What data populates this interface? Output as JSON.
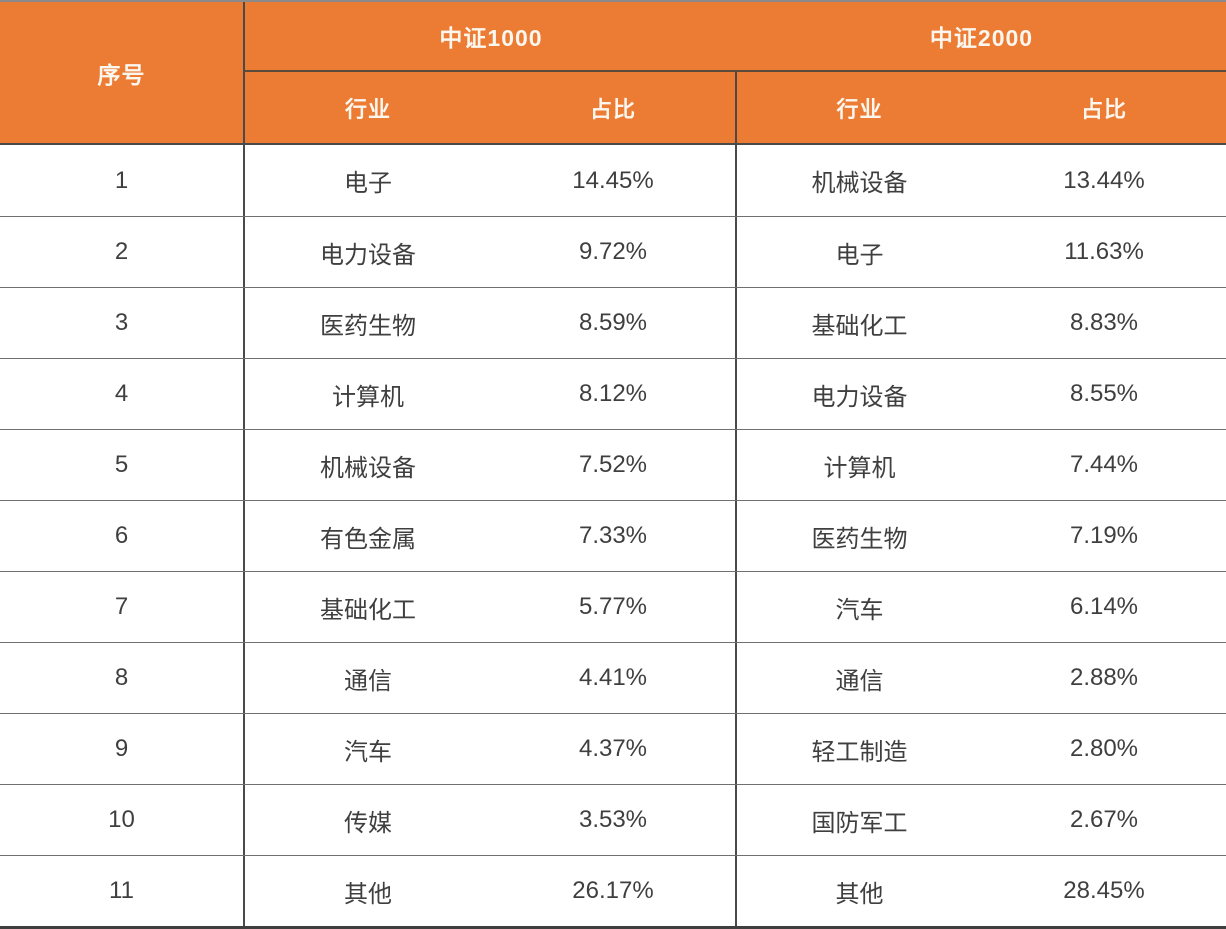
{
  "table": {
    "header": {
      "index_label": "序号",
      "groups": [
        {
          "label": "中证1000",
          "industry_label": "行业",
          "weight_label": "占比"
        },
        {
          "label": "中证2000",
          "industry_label": "行业",
          "weight_label": "占比"
        }
      ]
    },
    "rows": [
      {
        "no": "1",
        "csi1000": {
          "industry": "电子",
          "weight": "14.45%"
        },
        "csi2000": {
          "industry": "机械设备",
          "weight": "13.44%"
        }
      },
      {
        "no": "2",
        "csi1000": {
          "industry": "电力设备",
          "weight": "9.72%"
        },
        "csi2000": {
          "industry": "电子",
          "weight": "11.63%"
        }
      },
      {
        "no": "3",
        "csi1000": {
          "industry": "医药生物",
          "weight": "8.59%"
        },
        "csi2000": {
          "industry": "基础化工",
          "weight": "8.83%"
        }
      },
      {
        "no": "4",
        "csi1000": {
          "industry": "计算机",
          "weight": "8.12%"
        },
        "csi2000": {
          "industry": "电力设备",
          "weight": "8.55%"
        }
      },
      {
        "no": "5",
        "csi1000": {
          "industry": "机械设备",
          "weight": "7.52%"
        },
        "csi2000": {
          "industry": "计算机",
          "weight": "7.44%"
        }
      },
      {
        "no": "6",
        "csi1000": {
          "industry": "有色金属",
          "weight": "7.33%"
        },
        "csi2000": {
          "industry": "医药生物",
          "weight": "7.19%"
        }
      },
      {
        "no": "7",
        "csi1000": {
          "industry": "基础化工",
          "weight": "5.77%"
        },
        "csi2000": {
          "industry": "汽车",
          "weight": "6.14%"
        }
      },
      {
        "no": "8",
        "csi1000": {
          "industry": "通信",
          "weight": "4.41%"
        },
        "csi2000": {
          "industry": "通信",
          "weight": "2.88%"
        }
      },
      {
        "no": "9",
        "csi1000": {
          "industry": "汽车",
          "weight": "4.37%"
        },
        "csi2000": {
          "industry": "轻工制造",
          "weight": "2.80%"
        }
      },
      {
        "no": "10",
        "csi1000": {
          "industry": "传媒",
          "weight": "3.53%"
        },
        "csi2000": {
          "industry": "国防军工",
          "weight": "2.67%"
        }
      },
      {
        "no": "11",
        "csi1000": {
          "industry": "其他",
          "weight": "26.17%"
        },
        "csi2000": {
          "industry": "其他",
          "weight": "28.45%"
        }
      }
    ]
  },
  "colors": {
    "header_bg": "#EC7B34",
    "header_text": "#FBF6EE",
    "body_text": "#3F3F3F",
    "row_separator": "#6F6F6F",
    "outer_border": "#3F3F3F",
    "vertical_divider": "#4A4A4A"
  },
  "chart_data": {
    "type": "table",
    "columns": [
      "序号",
      "中证1000 行业",
      "中证1000 占比",
      "中证2000 行业",
      "中证2000 占比"
    ],
    "rows": [
      [
        1,
        "电子",
        14.45,
        "机械设备",
        13.44
      ],
      [
        2,
        "电力设备",
        9.72,
        "电子",
        11.63
      ],
      [
        3,
        "医药生物",
        8.59,
        "基础化工",
        8.83
      ],
      [
        4,
        "计算机",
        8.12,
        "电力设备",
        8.55
      ],
      [
        5,
        "机械设备",
        7.52,
        "计算机",
        7.44
      ],
      [
        6,
        "有色金属",
        7.33,
        "医药生物",
        7.19
      ],
      [
        7,
        "基础化工",
        5.77,
        "汽车",
        6.14
      ],
      [
        8,
        "通信",
        4.41,
        "通信",
        2.88
      ],
      [
        9,
        "汽车",
        4.37,
        "轻工制造",
        2.8
      ],
      [
        10,
        "传媒",
        3.53,
        "国防军工",
        2.67
      ],
      [
        11,
        "其他",
        26.17,
        "其他",
        28.45
      ]
    ],
    "units": "percent",
    "notes": "Industry weight comparison table between CSI 1000 and CSI 2000 indices"
  }
}
